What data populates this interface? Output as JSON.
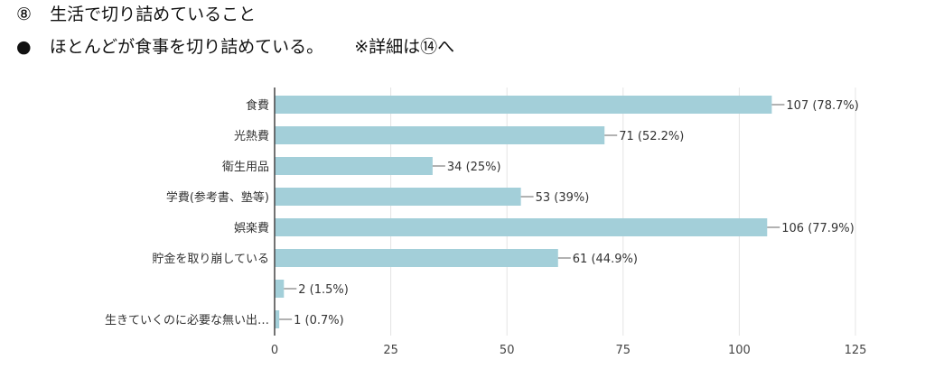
{
  "header": {
    "line1_marker": "⑧",
    "line1_text": "生活で切り詰めていること",
    "line2_marker": "●",
    "line2_text": "ほとんどが食事を切り詰めている。",
    "line2_note": "※詳細は⑭へ"
  },
  "chart_data": {
    "type": "bar",
    "orientation": "horizontal",
    "categories": [
      "食費",
      "光熱費",
      "衛生用品",
      "学費(参考書、塾等)",
      "娯楽費",
      "貯金を取り崩している",
      "",
      "生きていくのに必要な無い出…"
    ],
    "values": [
      107,
      71,
      34,
      53,
      106,
      61,
      2,
      1
    ],
    "data_labels": [
      "107 (78.7%)",
      "71 (52.2%)",
      "34 (25%)",
      "53 (39%)",
      "106 (77.9%)",
      "61 (44.9%)",
      "2 (1.5%)",
      "1 (0.7%)"
    ],
    "xlim": [
      0,
      125
    ],
    "xticks": [
      "0",
      "25",
      "50",
      "75",
      "100",
      "125"
    ],
    "grid": true,
    "colors": {
      "bar": "#a3cfd9",
      "grid": "#e4e4e4",
      "axis": "#444444"
    }
  }
}
